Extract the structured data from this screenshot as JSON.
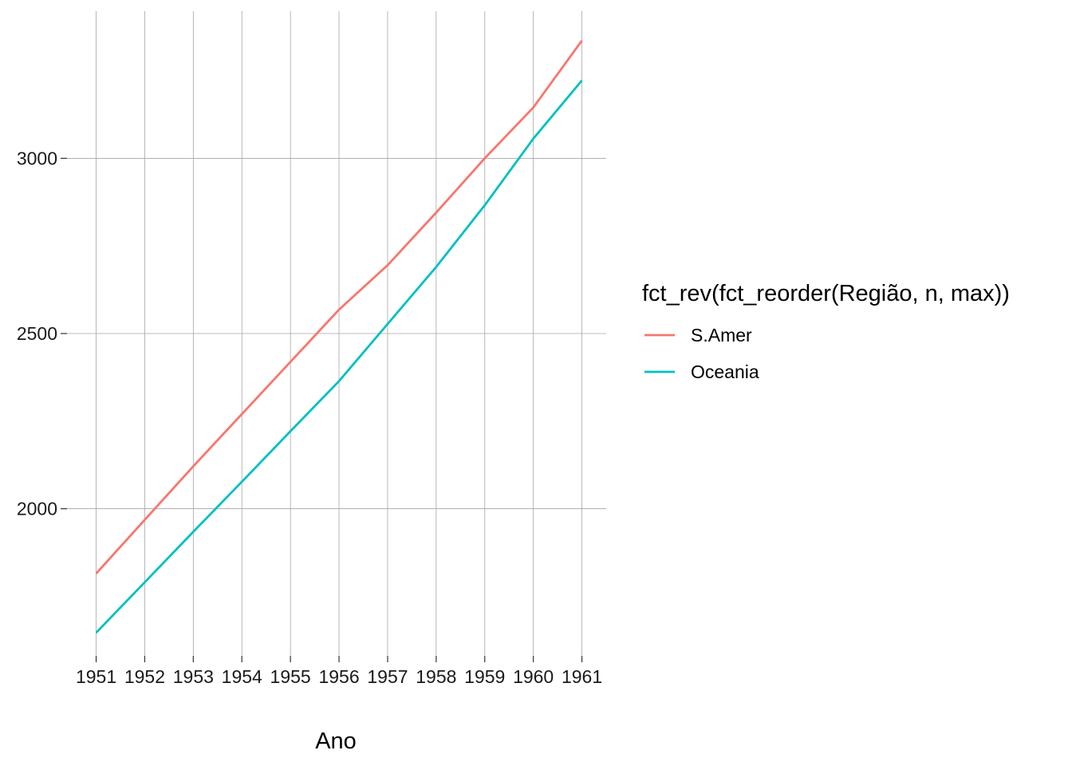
{
  "chart_data": {
    "type": "line",
    "title": "",
    "xlabel": "Ano",
    "ylabel": "",
    "x": [
      1951,
      1952,
      1953,
      1954,
      1955,
      1956,
      1957,
      1958,
      1959,
      1960,
      1961
    ],
    "x_tick_labels": [
      "1951",
      "1952",
      "1953",
      "1954",
      "1955",
      "1956",
      "1957",
      "1958",
      "1959",
      "1960",
      "1961"
    ],
    "y_ticks": [
      2000,
      2500,
      3000
    ],
    "y_tick_labels": [
      "2000",
      "2500",
      "3000"
    ],
    "xlim": [
      1950.4,
      1961.5
    ],
    "ylim": [
      1580,
      3420
    ],
    "grid": true,
    "legend": {
      "title": "fct_rev(fct_reorder(Região, n, max))",
      "placement": "right"
    },
    "series": [
      {
        "name": "S.Amer",
        "color": "#F8766D",
        "values": [
          1815,
          1968,
          2121,
          2270,
          2419,
          2568,
          2695,
          2845,
          3000,
          3145,
          3336
        ]
      },
      {
        "name": "Oceania",
        "color": "#00BFC4",
        "values": [
          1646,
          1790,
          1934,
          2077,
          2221,
          2364,
          2527,
          2690,
          2866,
          3056,
          3222
        ]
      }
    ]
  }
}
